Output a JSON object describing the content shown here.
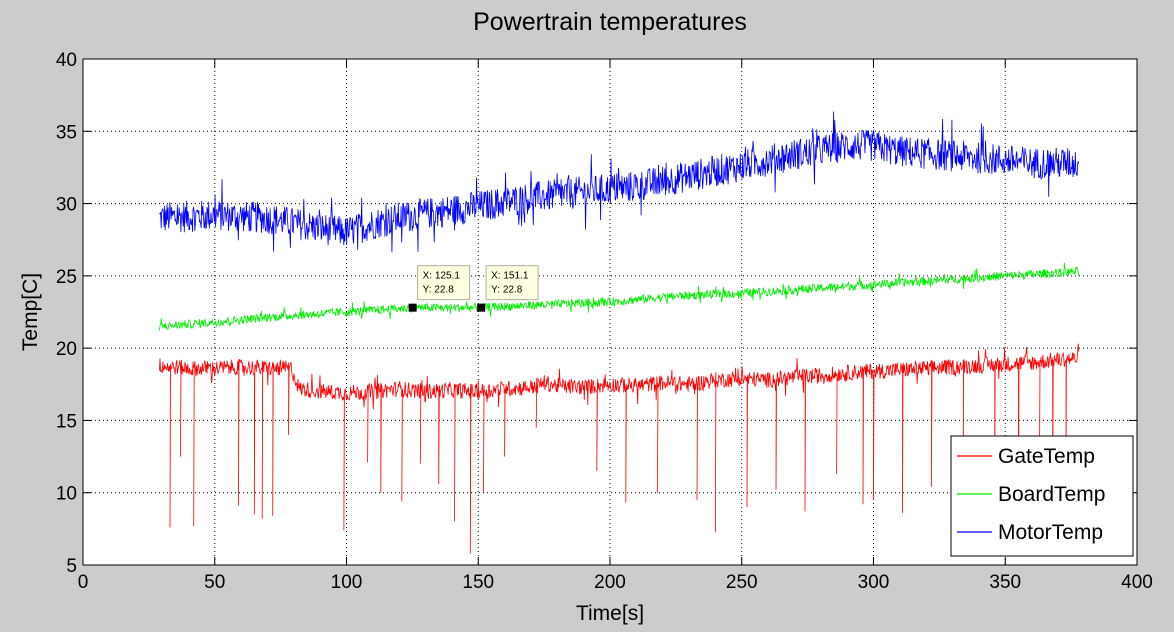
{
  "chart_data": {
    "type": "line",
    "title": "Powertrain temperatures",
    "xlabel": "Time[s]",
    "ylabel": "Temp[C]",
    "xlim": [
      0,
      400
    ],
    "ylim": [
      5,
      40
    ],
    "xticks": [
      0,
      50,
      100,
      150,
      200,
      250,
      300,
      350,
      400
    ],
    "yticks": [
      5,
      10,
      15,
      20,
      25,
      30,
      35,
      40
    ],
    "grid": true,
    "legend_position": "bottom-right",
    "series": [
      {
        "name": "GateTemp",
        "color": "#ff0000",
        "x": [
          29,
          40,
          50,
          60,
          70,
          79,
          82,
          90,
          100,
          110,
          120,
          130,
          140,
          150,
          160,
          170,
          175,
          180,
          190,
          200,
          210,
          220,
          230,
          240,
          250,
          260,
          270,
          280,
          290,
          300,
          310,
          320,
          330,
          340,
          350,
          360,
          370,
          378
        ],
        "y": [
          18.8,
          18.6,
          18.6,
          18.7,
          18.6,
          18.6,
          17.2,
          17.0,
          16.9,
          17.0,
          17.2,
          17.0,
          17.1,
          17.0,
          17.2,
          17.3,
          17.6,
          17.4,
          17.3,
          17.5,
          17.4,
          17.6,
          17.5,
          17.8,
          17.9,
          17.8,
          18.0,
          18.1,
          18.3,
          18.4,
          18.5,
          18.6,
          18.7,
          18.8,
          18.9,
          19.0,
          19.2,
          19.3
        ],
        "spikes": [
          [
            33,
            7.6
          ],
          [
            37,
            12.5
          ],
          [
            42,
            7.7
          ],
          [
            59,
            9.1
          ],
          [
            65,
            8.5
          ],
          [
            68,
            8.2
          ],
          [
            72,
            8.4
          ],
          [
            78,
            14.0
          ],
          [
            99,
            7.4
          ],
          [
            108,
            12.1
          ],
          [
            113,
            10.0
          ],
          [
            121,
            9.4
          ],
          [
            128,
            12.0
          ],
          [
            135,
            10.6
          ],
          [
            141,
            8.0
          ],
          [
            147,
            5.8
          ],
          [
            152,
            10.0
          ],
          [
            160,
            12.5
          ],
          [
            172,
            14.5
          ],
          [
            195,
            11.5
          ],
          [
            206,
            9.3
          ],
          [
            218,
            10.0
          ],
          [
            233,
            9.5
          ],
          [
            240,
            7.3
          ],
          [
            252,
            9.0
          ],
          [
            263,
            10.2
          ],
          [
            274,
            8.7
          ],
          [
            286,
            11.3
          ],
          [
            296,
            9.2
          ],
          [
            300,
            9.5
          ],
          [
            311,
            8.6
          ],
          [
            322,
            10.4
          ],
          [
            334,
            9.9
          ],
          [
            346,
            10.5
          ],
          [
            355,
            8.1
          ],
          [
            363,
            11.8
          ],
          [
            368,
            8.3
          ],
          [
            373,
            9.1
          ]
        ]
      },
      {
        "name": "BoardTemp",
        "color": "#00ee00",
        "x": [
          29,
          50,
          75,
          100,
          125,
          150,
          175,
          200,
          225,
          250,
          275,
          300,
          325,
          350,
          378
        ],
        "y": [
          21.5,
          21.8,
          22.2,
          22.5,
          22.8,
          22.8,
          23.0,
          23.2,
          23.6,
          23.8,
          24.1,
          24.4,
          24.7,
          25.0,
          25.3
        ],
        "data_tips": [
          {
            "x": "X: 125.1",
            "y": "Y: 22.8",
            "x_value": 125.1,
            "y_value": 22.8
          },
          {
            "x": "X: 151.1",
            "y": "Y: 22.8",
            "x_value": 151.1,
            "y_value": 22.8
          }
        ]
      },
      {
        "name": "MotorTemp",
        "color": "#0000ff",
        "x": [
          29,
          50,
          70,
          90,
          100,
          110,
          120,
          130,
          150,
          170,
          190,
          210,
          230,
          250,
          270,
          290,
          300,
          310,
          330,
          350,
          360,
          378
        ],
        "y": [
          29.0,
          29.2,
          29.0,
          28.3,
          28.0,
          28.6,
          29.0,
          29.3,
          29.8,
          30.4,
          30.8,
          31.2,
          31.9,
          32.6,
          33.4,
          34.0,
          34.0,
          33.6,
          33.3,
          33.0,
          32.8,
          32.8
        ]
      }
    ]
  }
}
